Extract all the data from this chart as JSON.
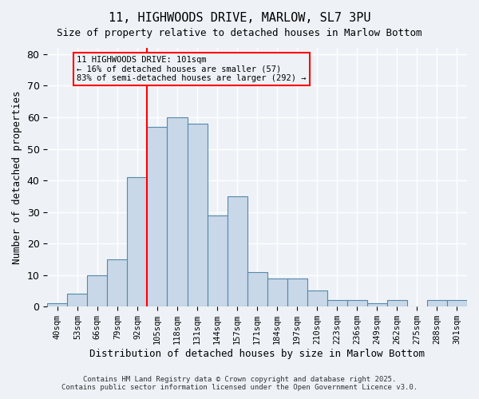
{
  "title_line1": "11, HIGHWOODS DRIVE, MARLOW, SL7 3PU",
  "title_line2": "Size of property relative to detached houses in Marlow Bottom",
  "xlabel": "Distribution of detached houses by size in Marlow Bottom",
  "ylabel": "Number of detached properties",
  "bar_color": "#c8d8e8",
  "bar_edge_color": "#5588aa",
  "bin_labels": [
    "40sqm",
    "53sqm",
    "66sqm",
    "79sqm",
    "92sqm",
    "105sqm",
    "118sqm",
    "131sqm",
    "144sqm",
    "157sqm",
    "171sqm",
    "184sqm",
    "197sqm",
    "210sqm",
    "223sqm",
    "236sqm",
    "249sqm",
    "262sqm",
    "275sqm",
    "288sqm",
    "301sqm"
  ],
  "bar_heights": [
    1,
    4,
    10,
    15,
    41,
    57,
    60,
    58,
    29,
    35,
    11,
    9,
    9,
    5,
    2,
    2,
    1,
    2,
    0,
    2,
    2
  ],
  "ylim": [
    0,
    82
  ],
  "yticks": [
    0,
    10,
    20,
    30,
    40,
    50,
    60,
    70,
    80
  ],
  "annotation_text_line1": "11 HIGHWOODS DRIVE: 101sqm",
  "annotation_text_line2": "← 16% of detached houses are smaller (57)",
  "annotation_text_line3": "83% of semi-detached houses are larger (292) →",
  "red_line_bin": 4,
  "background_color": "#eef2f7",
  "grid_color": "#ffffff",
  "footer_line1": "Contains HM Land Registry data © Crown copyright and database right 2025.",
  "footer_line2": "Contains public sector information licensed under the Open Government Licence v3.0."
}
